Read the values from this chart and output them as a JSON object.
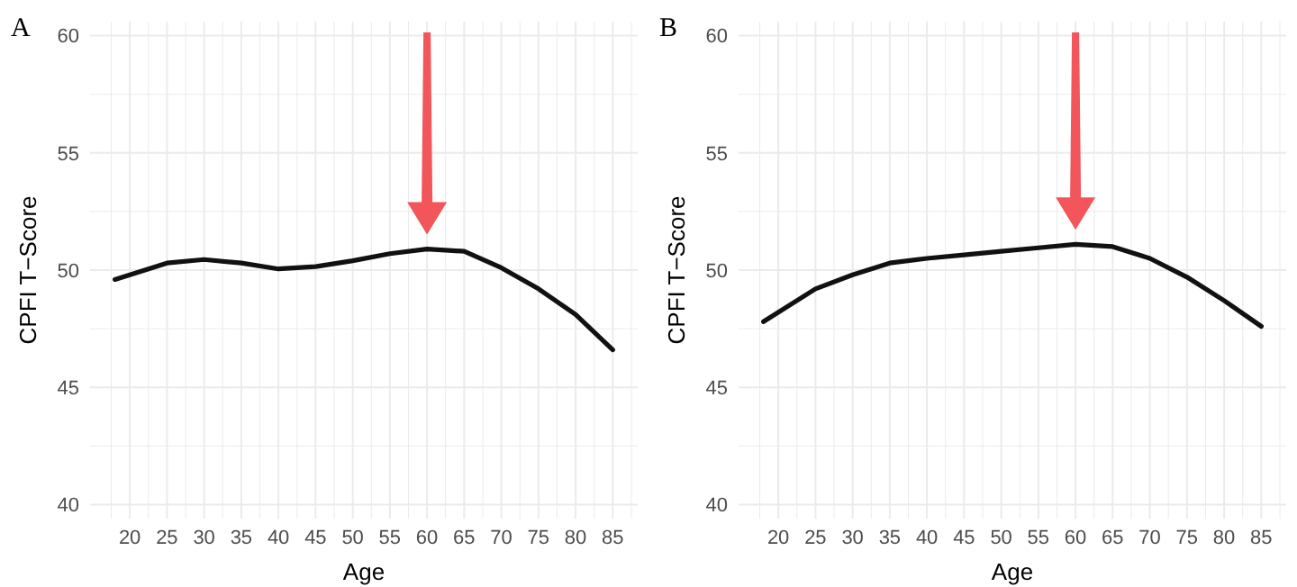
{
  "chart_data": [
    {
      "type": "line",
      "title": "A",
      "xlabel": "Age",
      "ylabel": "CPFI T−Score",
      "x": [
        18,
        25,
        30,
        35,
        40,
        45,
        50,
        55,
        60,
        65,
        70,
        75,
        80,
        85
      ],
      "series": [
        {
          "color": "#111111",
          "values": [
            49.6,
            50.3,
            50.45,
            50.3,
            50.05,
            50.15,
            50.4,
            50.7,
            50.9,
            50.8,
            50.1,
            49.2,
            48.1,
            46.6
          ]
        }
      ],
      "xlim": [
        14.65,
        88.35
      ],
      "xticks": [
        {
          "value": 17.5,
          "label": null
        },
        20,
        {
          "value": 22.5,
          "label": null
        },
        25,
        {
          "value": 27.5,
          "label": null
        },
        30,
        {
          "value": 32.5,
          "label": null
        },
        35,
        {
          "value": 37.5,
          "label": null
        },
        40,
        {
          "value": 42.5,
          "label": null
        },
        45,
        {
          "value": 47.5,
          "label": null
        },
        50,
        {
          "value": 52.5,
          "label": null
        },
        55,
        {
          "value": 57.5,
          "label": null
        },
        60,
        {
          "value": 62.5,
          "label": null
        },
        65,
        {
          "value": 67.5,
          "label": null
        },
        70,
        {
          "value": 72.5,
          "label": null
        },
        75,
        {
          "value": 77.5,
          "label": null
        },
        80,
        {
          "value": 82.5,
          "label": null
        },
        85,
        {
          "value": 87.5,
          "label": null
        }
      ],
      "ylim": [
        39.4,
        60.6
      ],
      "yticks": [
        40,
        {
          "value": 42.5,
          "label": null
        },
        45,
        {
          "value": 47.5,
          "label": null
        },
        50,
        {
          "value": 52.5,
          "label": null
        },
        55,
        {
          "value": 57.5,
          "label": null
        },
        60
      ],
      "grid": true,
      "line_style": "solid",
      "marker": "none"
    },
    {
      "type": "line",
      "title": "B",
      "xlabel": "Age",
      "ylabel": "CPFI T−Score",
      "x": [
        18,
        25,
        30,
        35,
        40,
        45,
        50,
        55,
        60,
        65,
        70,
        75,
        80,
        85
      ],
      "series": [
        {
          "color": "#111111",
          "values": [
            47.8,
            49.2,
            49.8,
            50.3,
            50.5,
            50.65,
            50.8,
            50.95,
            51.1,
            51.0,
            50.5,
            49.7,
            48.7,
            47.6
          ]
        }
      ],
      "xlim": [
        14.65,
        88.35
      ],
      "xticks": [
        {
          "value": 17.5,
          "label": null
        },
        20,
        {
          "value": 22.5,
          "label": null
        },
        25,
        {
          "value": 27.5,
          "label": null
        },
        30,
        {
          "value": 32.5,
          "label": null
        },
        35,
        {
          "value": 37.5,
          "label": null
        },
        40,
        {
          "value": 42.5,
          "label": null
        },
        45,
        {
          "value": 47.5,
          "label": null
        },
        50,
        {
          "value": 52.5,
          "label": null
        },
        55,
        {
          "value": 57.5,
          "label": null
        },
        60,
        {
          "value": 62.5,
          "label": null
        },
        65,
        {
          "value": 67.5,
          "label": null
        },
        70,
        {
          "value": 72.5,
          "label": null
        },
        75,
        {
          "value": 77.5,
          "label": null
        },
        80,
        {
          "value": 82.5,
          "label": null
        },
        85,
        {
          "value": 87.5,
          "label": null
        }
      ],
      "ylim": [
        39.4,
        60.6
      ],
      "yticks": [
        40,
        {
          "value": 42.5,
          "label": null
        },
        45,
        {
          "value": 47.5,
          "label": null
        },
        50,
        {
          "value": 52.5,
          "label": null
        },
        55,
        {
          "value": 57.5,
          "label": null
        },
        60
      ],
      "grid": true,
      "line_style": "solid",
      "marker": "none"
    }
  ]
}
